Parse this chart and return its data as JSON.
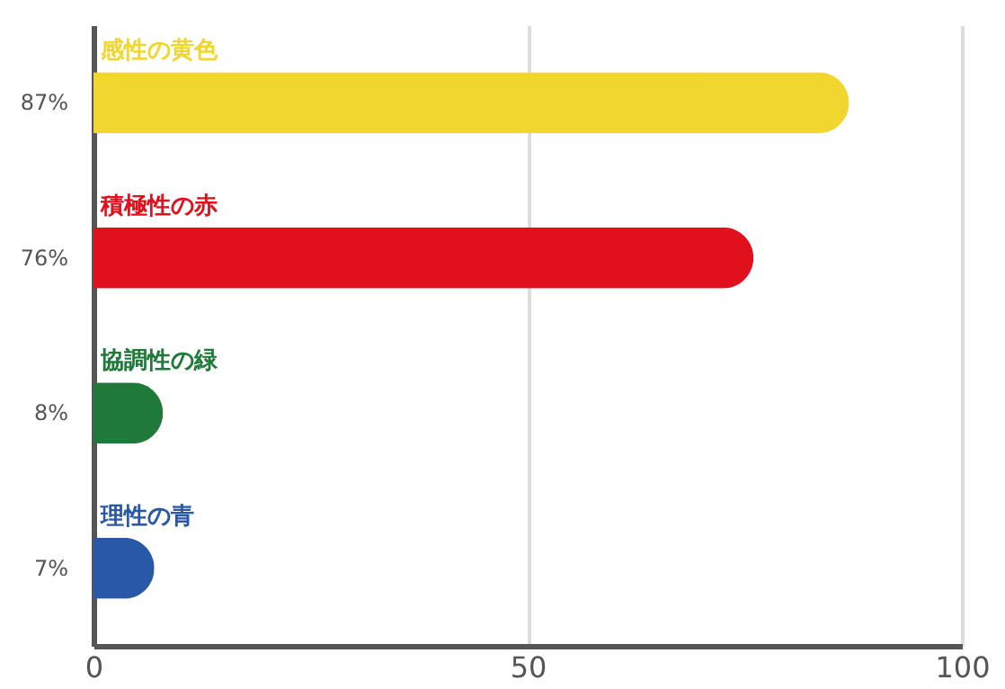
{
  "chart_data": {
    "type": "bar",
    "orientation": "horizontal",
    "categories": [
      "感性の黄色",
      "積極性の赤",
      "協調性の緑",
      "理性の青"
    ],
    "values": [
      87,
      76,
      8,
      7
    ],
    "colors": [
      "#f2d630",
      "#e0101c",
      "#1f7a3a",
      "#2a58a8"
    ],
    "value_labels": [
      "87%",
      "76%",
      "8%",
      "7%"
    ],
    "xlim": [
      0,
      100
    ],
    "xticks": [
      0,
      50,
      100
    ],
    "grid": "x"
  }
}
